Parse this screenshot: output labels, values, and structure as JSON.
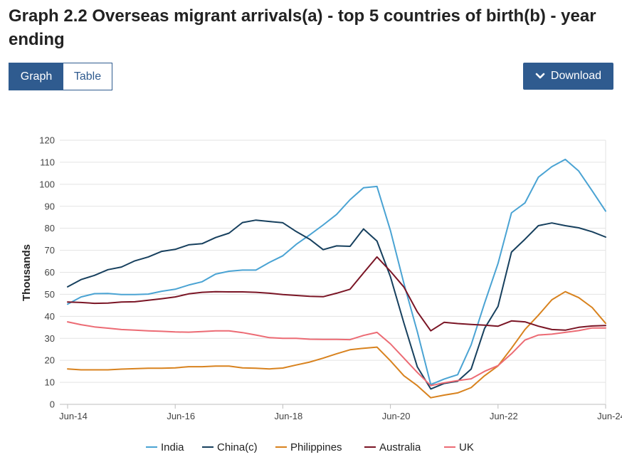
{
  "title": "Graph 2.2 Overseas migrant arrivals(a) - top 5 countries of birth(b) - year ending",
  "toggle": {
    "graph_label": "Graph",
    "table_label": "Table"
  },
  "download": {
    "label": "Download",
    "icon": "chevron-down-icon"
  },
  "chart_data": {
    "type": "line",
    "title": "Graph 2.2 Overseas migrant arrivals(a) - top 5 countries of birth(b) - year ending",
    "xlabel": "",
    "ylabel": "Thousands",
    "ylim": [
      0,
      120
    ],
    "yticks": [
      0,
      10,
      20,
      30,
      40,
      50,
      60,
      70,
      80,
      90,
      100,
      110,
      120
    ],
    "x_tick_labels": [
      "Jun-14",
      "Jun-16",
      "Jun-18",
      "Jun-20",
      "Jun-22",
      "Jun-24"
    ],
    "x_tick_indices": [
      0,
      8,
      16,
      24,
      32,
      40
    ],
    "grid": true,
    "legend_position": "bottom",
    "series": [
      {
        "name": "India",
        "color": "#4aa3d3",
        "values": [
          45.5,
          48.8,
          50.3,
          50.4,
          49.9,
          49.9,
          50.1,
          51.4,
          52.3,
          54.2,
          55.7,
          59.2,
          60.5,
          61.0,
          61.0,
          64.5,
          67.5,
          72.7,
          77.0,
          81.5,
          86.3,
          93.0,
          98.4,
          99.0,
          79.0,
          55.0,
          33.0,
          9.0,
          11.5,
          13.5,
          27.0,
          46.0,
          64.0,
          87.0,
          91.5,
          103.2,
          108.0,
          111.3,
          106.0,
          97.0,
          87.8
        ]
      },
      {
        "name": "China(c)",
        "color": "#17405e",
        "values": [
          53.4,
          56.7,
          58.6,
          61.2,
          62.4,
          65.2,
          67.0,
          69.5,
          70.4,
          72.5,
          73.0,
          75.8,
          77.8,
          82.6,
          83.7,
          83.1,
          82.5,
          78.5,
          75.0,
          70.3,
          72.0,
          71.8,
          79.7,
          74.2,
          58.0,
          37.0,
          17.0,
          7.0,
          9.5,
          10.5,
          16.0,
          34.5,
          44.5,
          69.2,
          75.0,
          81.2,
          82.4,
          81.2,
          80.2,
          78.4,
          76.0
        ]
      },
      {
        "name": "Philippines",
        "color": "#d8821e",
        "values": [
          16.1,
          15.7,
          15.7,
          15.7,
          16.0,
          16.2,
          16.4,
          16.4,
          16.6,
          17.1,
          17.1,
          17.4,
          17.4,
          16.6,
          16.4,
          16.1,
          16.5,
          17.9,
          19.2,
          21.0,
          23.0,
          24.8,
          25.5,
          26.0,
          19.8,
          13.0,
          8.5,
          3.0,
          4.2,
          5.2,
          7.6,
          13.0,
          17.5,
          25.5,
          34.0,
          40.5,
          47.5,
          51.2,
          48.5,
          44.0,
          36.8
        ]
      },
      {
        "name": "Australia",
        "color": "#7a1525",
        "values": [
          46.5,
          46.3,
          45.9,
          46.0,
          46.5,
          46.6,
          47.3,
          48.0,
          48.8,
          50.2,
          50.9,
          51.2,
          51.1,
          51.1,
          50.9,
          50.5,
          49.9,
          49.5,
          49.1,
          48.9,
          50.5,
          52.3,
          59.7,
          67.0,
          60.5,
          53.3,
          42.0,
          33.4,
          37.3,
          36.7,
          36.3,
          36.0,
          35.5,
          37.9,
          37.5,
          35.5,
          34.0,
          33.7,
          35.0,
          35.6,
          35.8
        ]
      },
      {
        "name": "UK",
        "color": "#ec6b74",
        "values": [
          37.5,
          36.2,
          35.2,
          34.6,
          34.0,
          33.7,
          33.4,
          33.2,
          32.9,
          32.8,
          33.1,
          33.4,
          33.4,
          32.6,
          31.5,
          30.3,
          30.0,
          30.0,
          29.6,
          29.5,
          29.5,
          29.4,
          31.3,
          32.7,
          27.5,
          21.0,
          14.5,
          8.5,
          9.8,
          10.8,
          11.6,
          15.0,
          17.6,
          23.0,
          29.2,
          31.5,
          31.9,
          32.7,
          33.5,
          34.7,
          34.7
        ]
      }
    ]
  }
}
